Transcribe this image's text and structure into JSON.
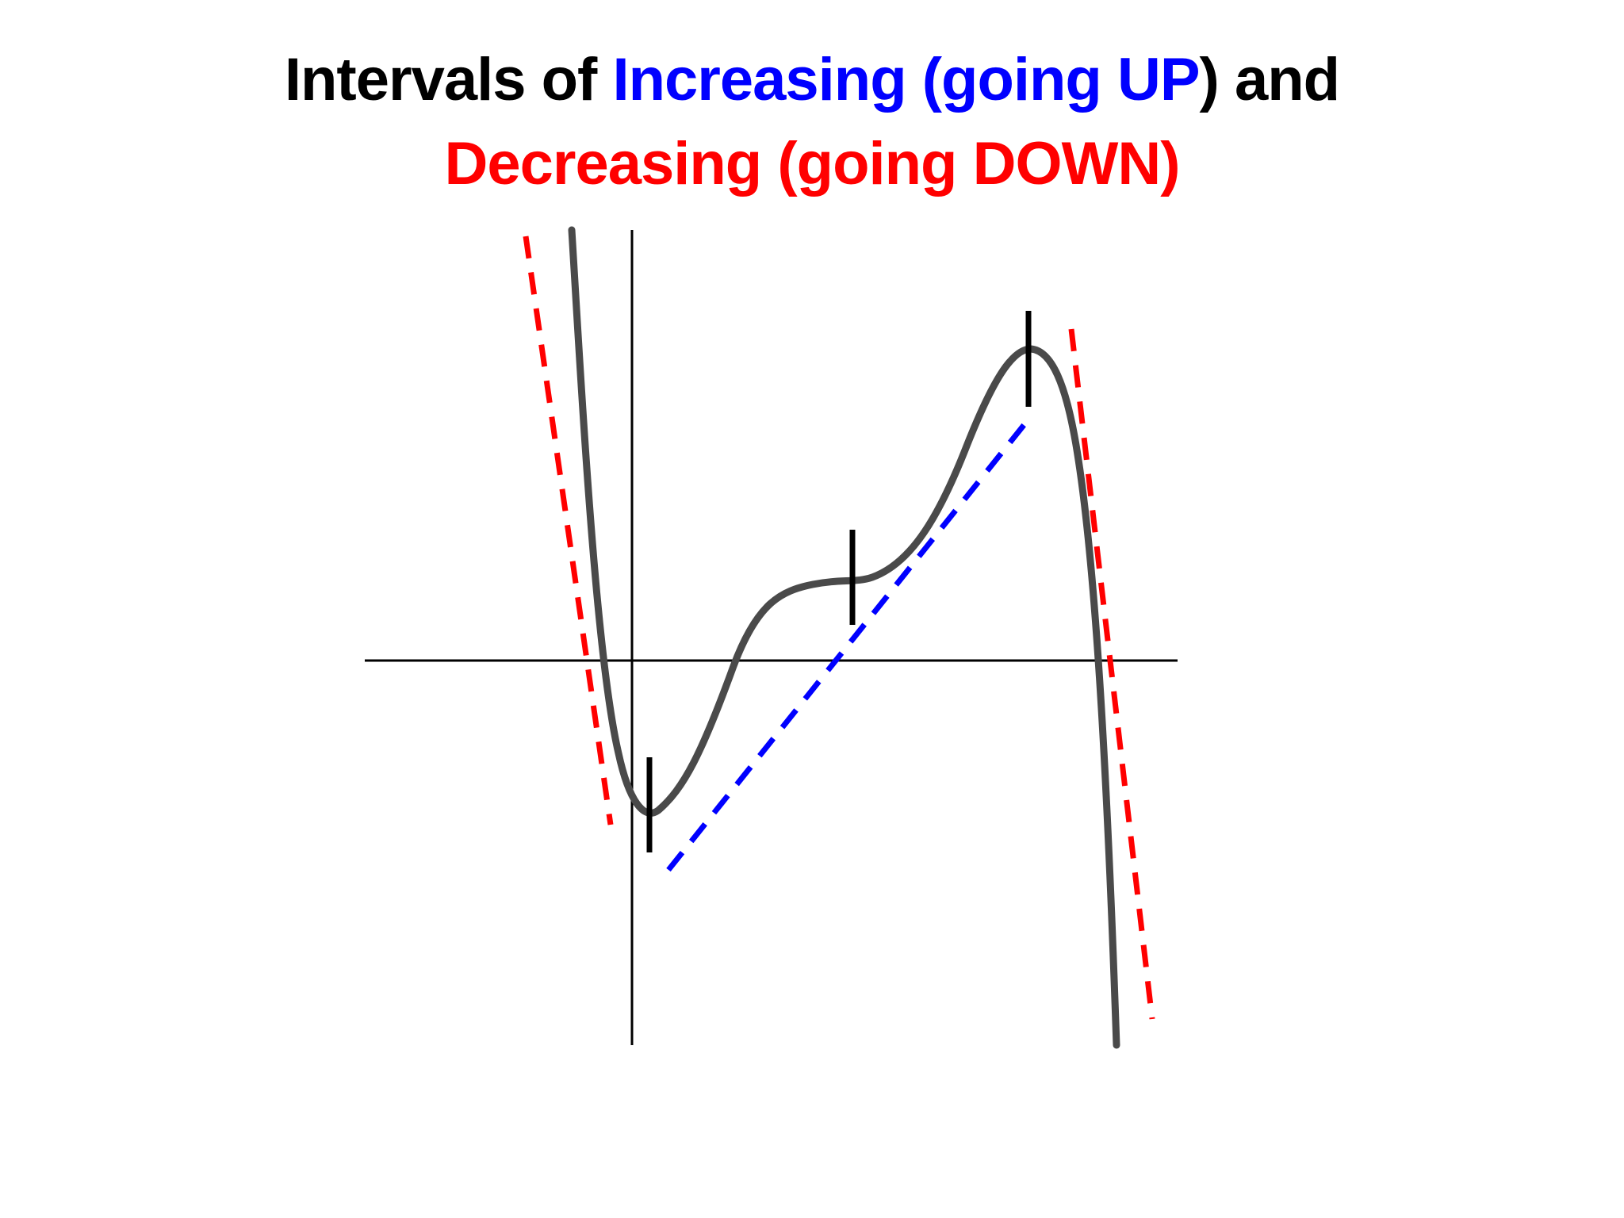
{
  "title": {
    "line1_part1": "Intervals of ",
    "line1_part2": "Increasing (going UP",
    "line1_part3": ") and",
    "line2": "Decreasing (going DOWN)"
  },
  "colors": {
    "text": "#000000",
    "increasing": "#0000ff",
    "decreasing": "#ff0000",
    "curve": "#4a4a4a",
    "axes": "#000000",
    "marks": "#000000"
  },
  "graph": {
    "curve_shape": "quartic-like: falls steeply, local minimum, rises, flattens at a plateau, rises to a local maximum, falls steeply",
    "turning_points": [
      "local-minimum",
      "plateau",
      "local-maximum"
    ],
    "segments": [
      {
        "trend": "decreasing",
        "color": "decreasing"
      },
      {
        "trend": "increasing",
        "color": "increasing"
      },
      {
        "trend": "decreasing",
        "color": "decreasing"
      }
    ],
    "icons": [
      "x-axis",
      "y-axis",
      "curve",
      "dashed-trend-line",
      "tick-mark"
    ]
  }
}
